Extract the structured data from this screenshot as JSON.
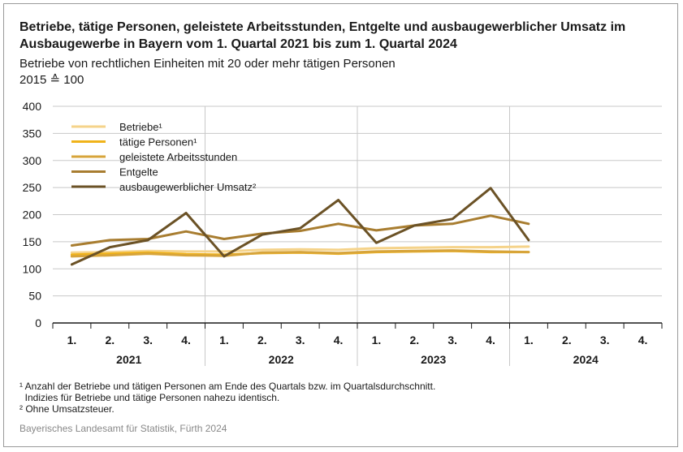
{
  "title": "Betriebe, tätige Personen, geleistete Arbeitsstunden, Entgelte und ausbaugewerblicher Umsatz im Ausbaugewerbe in Bayern vom 1. Quartal 2021 bis zum 1. Quartal 2024",
  "subtitle": "Betriebe von rechtlichen Einheiten mit 20 oder mehr tätigen Personen",
  "unit": "2015 ≙ 100",
  "footnotes": [
    "¹ Anzahl der Betriebe und tätigen Personen am Ende des Quartals bzw. im Quartalsdurchschnitt.",
    "  Indizies für Betriebe und tätige Personen nahezu identisch.",
    "² Ohne Umsatzsteuer."
  ],
  "source": "Bayerisches Landesamt für Statistik, Fürth 2024",
  "chart_data": {
    "type": "line",
    "ylim": [
      0,
      400
    ],
    "yticks": [
      "0",
      "50",
      "100",
      "150",
      "200",
      "250",
      "300",
      "350",
      "400"
    ],
    "grid": true,
    "legend_position": "top-left",
    "x_quarters": [
      "1.",
      "2.",
      "3.",
      "4.",
      "1.",
      "2.",
      "3.",
      "4.",
      "1.",
      "2.",
      "3.",
      "4.",
      "1.",
      "2.",
      "3.",
      "4."
    ],
    "x_years": [
      "2021",
      "2022",
      "2023",
      "2024"
    ],
    "series": [
      {
        "name": "Betriebe¹",
        "color": "#f5d38a",
        "values": [
          130,
          131,
          133,
          132,
          132,
          135,
          136,
          135,
          138,
          139,
          140,
          140,
          141,
          null,
          null,
          null
        ]
      },
      {
        "name": "tätige Personen¹",
        "color": "#f0b31a",
        "values": [
          126,
          128,
          130,
          127,
          126,
          129,
          130,
          128,
          131,
          132,
          133,
          131,
          131,
          null,
          null,
          null
        ]
      },
      {
        "name": "geleistete Arbeitsstunden",
        "color": "#d7a43a",
        "values": [
          123,
          125,
          128,
          125,
          124,
          130,
          131,
          129,
          132,
          133,
          134,
          132,
          131,
          null,
          null,
          null
        ]
      },
      {
        "name": "Entgelte",
        "color": "#a87d30",
        "values": [
          143,
          153,
          155,
          169,
          155,
          165,
          170,
          183,
          171,
          180,
          183,
          198,
          183,
          null,
          null,
          null
        ]
      },
      {
        "name": "ausbaugewerblicher Umsatz²",
        "color": "#6b5226",
        "values": [
          108,
          140,
          153,
          203,
          123,
          163,
          175,
          227,
          148,
          180,
          192,
          249,
          153,
          null,
          null,
          null
        ]
      }
    ]
  }
}
